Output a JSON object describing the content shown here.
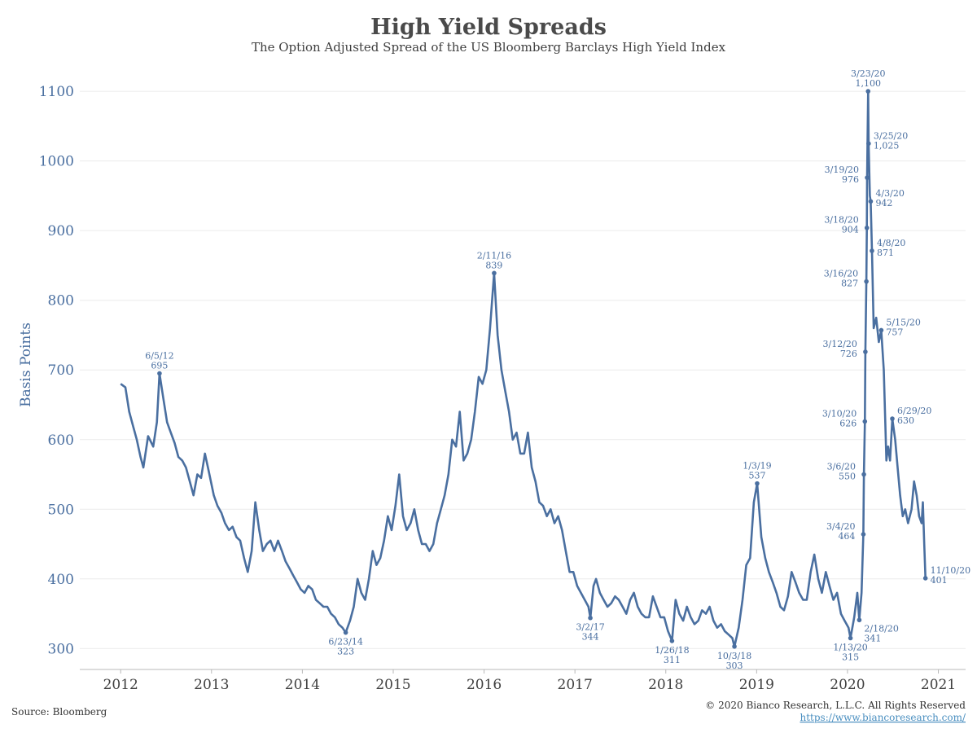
{
  "header": {
    "title": "High Yield Spreads",
    "subtitle": "The Option Adjusted Spread of the US Bloomberg Barclays High Yield Index"
  },
  "footer": {
    "source": "Source: Bloomberg",
    "copyright": "© 2020 Bianco Research, L.L.C. All Rights Reserved",
    "url": "https://www.biancoresearch.com/"
  },
  "colors": {
    "line": "#4a6fa0",
    "grid": "#ebebeb",
    "title": "#4a4a4a"
  },
  "chart_data": {
    "type": "line",
    "title": "High Yield Spreads",
    "subtitle": "The Option Adjusted Spread of the US Bloomberg Barclays High Yield Index",
    "xlabel": "",
    "ylabel": "Basis Points",
    "xlim": [
      2011.55,
      2021.3
    ],
    "ylim": [
      270,
      1120
    ],
    "grid": true,
    "x_ticks": [
      "2012",
      "2013",
      "2014",
      "2015",
      "2016",
      "2017",
      "2018",
      "2019",
      "2020",
      "2021"
    ],
    "y_ticks": [
      300,
      400,
      500,
      600,
      700,
      800,
      900,
      1000,
      1100
    ],
    "series": [
      {
        "points": [
          [
            "2012-01-01",
            680
          ],
          [
            "2012-01-20",
            675
          ],
          [
            "2012-02-05",
            640
          ],
          [
            "2012-02-20",
            620
          ],
          [
            "2012-03-05",
            600
          ],
          [
            "2012-03-20",
            575
          ],
          [
            "2012-04-01",
            560
          ],
          [
            "2012-04-20",
            605
          ],
          [
            "2012-05-10",
            590
          ],
          [
            "2012-05-25",
            625
          ],
          [
            "2012-06-05",
            695
          ],
          [
            "2012-06-20",
            660
          ],
          [
            "2012-07-05",
            625
          ],
          [
            "2012-07-20",
            610
          ],
          [
            "2012-08-05",
            595
          ],
          [
            "2012-08-20",
            575
          ],
          [
            "2012-09-05",
            570
          ],
          [
            "2012-09-20",
            560
          ],
          [
            "2012-10-05",
            540
          ],
          [
            "2012-10-20",
            520
          ],
          [
            "2012-11-05",
            550
          ],
          [
            "2012-11-20",
            545
          ],
          [
            "2012-12-05",
            580
          ],
          [
            "2012-12-20",
            555
          ],
          [
            "2013-01-10",
            520
          ],
          [
            "2013-01-25",
            505
          ],
          [
            "2013-02-10",
            495
          ],
          [
            "2013-02-25",
            480
          ],
          [
            "2013-03-10",
            470
          ],
          [
            "2013-03-25",
            475
          ],
          [
            "2013-04-10",
            460
          ],
          [
            "2013-04-25",
            455
          ],
          [
            "2013-05-10",
            430
          ],
          [
            "2013-05-25",
            410
          ],
          [
            "2013-06-10",
            440
          ],
          [
            "2013-06-25",
            510
          ],
          [
            "2013-07-10",
            470
          ],
          [
            "2013-07-25",
            440
          ],
          [
            "2013-08-10",
            450
          ],
          [
            "2013-08-25",
            455
          ],
          [
            "2013-09-10",
            440
          ],
          [
            "2013-09-25",
            455
          ],
          [
            "2013-10-10",
            440
          ],
          [
            "2013-10-25",
            425
          ],
          [
            "2013-11-10",
            415
          ],
          [
            "2013-11-25",
            405
          ],
          [
            "2013-12-10",
            395
          ],
          [
            "2013-12-25",
            385
          ],
          [
            "2014-01-10",
            380
          ],
          [
            "2014-01-25",
            390
          ],
          [
            "2014-02-10",
            385
          ],
          [
            "2014-02-25",
            370
          ],
          [
            "2014-03-10",
            365
          ],
          [
            "2014-03-25",
            360
          ],
          [
            "2014-04-10",
            360
          ],
          [
            "2014-04-25",
            350
          ],
          [
            "2014-05-10",
            345
          ],
          [
            "2014-05-25",
            335
          ],
          [
            "2014-06-10",
            330
          ],
          [
            "2014-06-23",
            323
          ],
          [
            "2014-07-10",
            340
          ],
          [
            "2014-07-25",
            360
          ],
          [
            "2014-08-10",
            400
          ],
          [
            "2014-08-25",
            380
          ],
          [
            "2014-09-10",
            370
          ],
          [
            "2014-09-25",
            400
          ],
          [
            "2014-10-10",
            440
          ],
          [
            "2014-10-25",
            420
          ],
          [
            "2014-11-10",
            430
          ],
          [
            "2014-11-25",
            455
          ],
          [
            "2014-12-10",
            490
          ],
          [
            "2014-12-25",
            470
          ],
          [
            "2015-01-10",
            505
          ],
          [
            "2015-01-25",
            550
          ],
          [
            "2015-02-10",
            490
          ],
          [
            "2015-02-25",
            470
          ],
          [
            "2015-03-10",
            480
          ],
          [
            "2015-03-25",
            500
          ],
          [
            "2015-04-10",
            470
          ],
          [
            "2015-04-25",
            450
          ],
          [
            "2015-05-10",
            450
          ],
          [
            "2015-05-25",
            440
          ],
          [
            "2015-06-10",
            450
          ],
          [
            "2015-06-25",
            480
          ],
          [
            "2015-07-10",
            500
          ],
          [
            "2015-07-25",
            520
          ],
          [
            "2015-08-10",
            550
          ],
          [
            "2015-08-25",
            600
          ],
          [
            "2015-09-10",
            590
          ],
          [
            "2015-09-25",
            640
          ],
          [
            "2015-10-10",
            570
          ],
          [
            "2015-10-25",
            580
          ],
          [
            "2015-11-10",
            600
          ],
          [
            "2015-11-25",
            640
          ],
          [
            "2015-12-10",
            690
          ],
          [
            "2015-12-25",
            680
          ],
          [
            "2016-01-10",
            700
          ],
          [
            "2016-01-25",
            760
          ],
          [
            "2016-02-11",
            839
          ],
          [
            "2016-02-25",
            750
          ],
          [
            "2016-03-10",
            700
          ],
          [
            "2016-03-25",
            670
          ],
          [
            "2016-04-10",
            640
          ],
          [
            "2016-04-25",
            600
          ],
          [
            "2016-05-10",
            610
          ],
          [
            "2016-05-25",
            580
          ],
          [
            "2016-06-10",
            580
          ],
          [
            "2016-06-25",
            610
          ],
          [
            "2016-07-10",
            560
          ],
          [
            "2016-07-25",
            540
          ],
          [
            "2016-08-10",
            510
          ],
          [
            "2016-08-25",
            505
          ],
          [
            "2016-09-10",
            490
          ],
          [
            "2016-09-25",
            500
          ],
          [
            "2016-10-10",
            480
          ],
          [
            "2016-10-25",
            490
          ],
          [
            "2016-11-10",
            470
          ],
          [
            "2016-11-25",
            440
          ],
          [
            "2016-12-10",
            410
          ],
          [
            "2016-12-25",
            410
          ],
          [
            "2017-01-10",
            390
          ],
          [
            "2017-01-25",
            380
          ],
          [
            "2017-02-10",
            370
          ],
          [
            "2017-02-25",
            360
          ],
          [
            "2017-03-02",
            344
          ],
          [
            "2017-03-15",
            390
          ],
          [
            "2017-03-25",
            400
          ],
          [
            "2017-04-10",
            380
          ],
          [
            "2017-04-25",
            370
          ],
          [
            "2017-05-10",
            360
          ],
          [
            "2017-05-25",
            365
          ],
          [
            "2017-06-10",
            375
          ],
          [
            "2017-06-25",
            370
          ],
          [
            "2017-07-10",
            360
          ],
          [
            "2017-07-25",
            350
          ],
          [
            "2017-08-10",
            370
          ],
          [
            "2017-08-25",
            380
          ],
          [
            "2017-09-10",
            360
          ],
          [
            "2017-09-25",
            350
          ],
          [
            "2017-10-10",
            345
          ],
          [
            "2017-10-25",
            345
          ],
          [
            "2017-11-10",
            375
          ],
          [
            "2017-11-25",
            360
          ],
          [
            "2017-12-10",
            345
          ],
          [
            "2017-12-25",
            345
          ],
          [
            "2018-01-10",
            325
          ],
          [
            "2018-01-26",
            311
          ],
          [
            "2018-02-10",
            370
          ],
          [
            "2018-02-25",
            350
          ],
          [
            "2018-03-10",
            340
          ],
          [
            "2018-03-25",
            360
          ],
          [
            "2018-04-10",
            345
          ],
          [
            "2018-04-25",
            335
          ],
          [
            "2018-05-10",
            340
          ],
          [
            "2018-05-25",
            355
          ],
          [
            "2018-06-10",
            350
          ],
          [
            "2018-06-25",
            360
          ],
          [
            "2018-07-10",
            340
          ],
          [
            "2018-07-25",
            330
          ],
          [
            "2018-08-10",
            335
          ],
          [
            "2018-08-25",
            325
          ],
          [
            "2018-09-10",
            320
          ],
          [
            "2018-09-25",
            315
          ],
          [
            "2018-10-03",
            303
          ],
          [
            "2018-10-20",
            330
          ],
          [
            "2018-11-05",
            370
          ],
          [
            "2018-11-20",
            420
          ],
          [
            "2018-12-05",
            430
          ],
          [
            "2018-12-20",
            510
          ],
          [
            "2019-01-03",
            537
          ],
          [
            "2019-01-20",
            460
          ],
          [
            "2019-02-05",
            430
          ],
          [
            "2019-02-20",
            410
          ],
          [
            "2019-03-05",
            395
          ],
          [
            "2019-03-20",
            380
          ],
          [
            "2019-04-05",
            360
          ],
          [
            "2019-04-20",
            355
          ],
          [
            "2019-05-05",
            375
          ],
          [
            "2019-05-20",
            410
          ],
          [
            "2019-06-05",
            395
          ],
          [
            "2019-06-20",
            380
          ],
          [
            "2019-07-05",
            370
          ],
          [
            "2019-07-20",
            370
          ],
          [
            "2019-08-05",
            410
          ],
          [
            "2019-08-20",
            435
          ],
          [
            "2019-09-05",
            400
          ],
          [
            "2019-09-20",
            380
          ],
          [
            "2019-10-05",
            410
          ],
          [
            "2019-10-20",
            390
          ],
          [
            "2019-11-05",
            370
          ],
          [
            "2019-11-20",
            380
          ],
          [
            "2019-12-05",
            350
          ],
          [
            "2019-12-20",
            340
          ],
          [
            "2020-01-05",
            330
          ],
          [
            "2020-01-13",
            315
          ],
          [
            "2020-01-28",
            345
          ],
          [
            "2020-02-10",
            380
          ],
          [
            "2020-02-18",
            341
          ],
          [
            "2020-02-27",
            380
          ],
          [
            "2020-03-04",
            464
          ],
          [
            "2020-03-06",
            550
          ],
          [
            "2020-03-10",
            626
          ],
          [
            "2020-03-12",
            726
          ],
          [
            "2020-03-16",
            827
          ],
          [
            "2020-03-18",
            904
          ],
          [
            "2020-03-19",
            976
          ],
          [
            "2020-03-23",
            1100
          ],
          [
            "2020-03-25",
            1025
          ],
          [
            "2020-03-30",
            950
          ],
          [
            "2020-04-03",
            942
          ],
          [
            "2020-04-08",
            871
          ],
          [
            "2020-04-15",
            760
          ],
          [
            "2020-04-25",
            775
          ],
          [
            "2020-05-05",
            740
          ],
          [
            "2020-05-15",
            757
          ],
          [
            "2020-05-25",
            700
          ],
          [
            "2020-06-05",
            570
          ],
          [
            "2020-06-12",
            590
          ],
          [
            "2020-06-20",
            570
          ],
          [
            "2020-06-29",
            630
          ],
          [
            "2020-07-10",
            600
          ],
          [
            "2020-07-20",
            560
          ],
          [
            "2020-07-30",
            520
          ],
          [
            "2020-08-10",
            490
          ],
          [
            "2020-08-20",
            500
          ],
          [
            "2020-09-01",
            480
          ],
          [
            "2020-09-15",
            500
          ],
          [
            "2020-09-25",
            540
          ],
          [
            "2020-10-05",
            520
          ],
          [
            "2020-10-15",
            490
          ],
          [
            "2020-10-25",
            480
          ],
          [
            "2020-10-30",
            510
          ],
          [
            "2020-11-05",
            450
          ],
          [
            "2020-11-10",
            401
          ]
        ]
      }
    ],
    "annotations": [
      {
        "date": "2012-06-05",
        "label": "6/5/12",
        "value": "695",
        "pos": "above"
      },
      {
        "date": "2014-06-23",
        "label": "6/23/14",
        "value": "323",
        "pos": "below"
      },
      {
        "date": "2016-02-11",
        "label": "2/11/16",
        "value": "839",
        "pos": "above"
      },
      {
        "date": "2017-03-02",
        "label": "3/2/17",
        "value": "344",
        "pos": "below"
      },
      {
        "date": "2018-01-26",
        "label": "1/26/18",
        "value": "311",
        "pos": "below"
      },
      {
        "date": "2018-10-03",
        "label": "10/3/18",
        "value": "303",
        "pos": "below"
      },
      {
        "date": "2019-01-03",
        "label": "1/3/19",
        "value": "537",
        "pos": "above"
      },
      {
        "date": "2020-01-13",
        "label": "1/13/20",
        "value": "315",
        "pos": "below"
      },
      {
        "date": "2020-02-18",
        "label": "2/18/20",
        "value": "341",
        "pos": "below-right"
      },
      {
        "date": "2020-03-04",
        "label": "3/4/20",
        "value": "464",
        "pos": "left"
      },
      {
        "date": "2020-03-06",
        "label": "3/6/20",
        "value": "550",
        "pos": "left"
      },
      {
        "date": "2020-03-10",
        "label": "3/10/20",
        "value": "626",
        "pos": "left"
      },
      {
        "date": "2020-03-12",
        "label": "3/12/20",
        "value": "726",
        "pos": "left"
      },
      {
        "date": "2020-03-16",
        "label": "3/16/20",
        "value": "827",
        "pos": "left"
      },
      {
        "date": "2020-03-18",
        "label": "3/18/20",
        "value": "904",
        "pos": "left"
      },
      {
        "date": "2020-03-19",
        "label": "3/19/20",
        "value": "976",
        "pos": "left"
      },
      {
        "date": "2020-03-23",
        "label": "3/23/20",
        "value": "1,100",
        "pos": "above"
      },
      {
        "date": "2020-03-25",
        "label": "3/25/20",
        "value": "1,025",
        "pos": "right"
      },
      {
        "date": "2020-04-03",
        "label": "4/3/20",
        "value": "942",
        "pos": "right"
      },
      {
        "date": "2020-04-08",
        "label": "4/8/20",
        "value": "871",
        "pos": "right"
      },
      {
        "date": "2020-05-15",
        "label": "5/15/20",
        "value": "757",
        "pos": "right"
      },
      {
        "date": "2020-06-29",
        "label": "6/29/20",
        "value": "630",
        "pos": "right"
      },
      {
        "date": "2020-11-10",
        "label": "11/10/20",
        "value": "401",
        "pos": "right"
      }
    ]
  }
}
